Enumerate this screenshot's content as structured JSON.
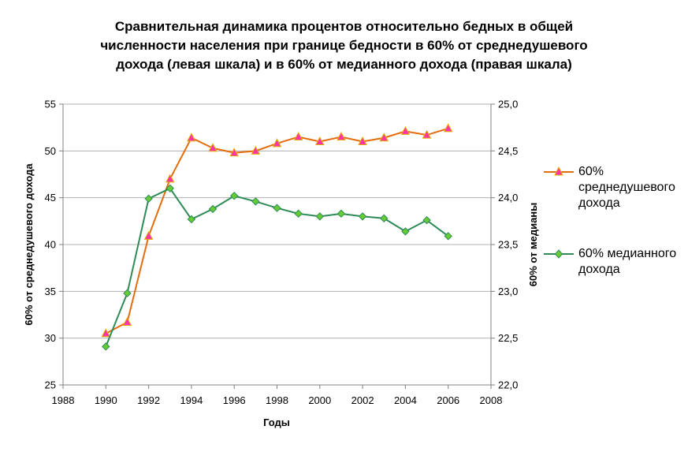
{
  "chart_data": {
    "type": "line",
    "title_lines": [
      "Сравнительная динамика процентов относительно бедных в общей",
      "численности населения при границе бедности в 60% от среднедушевого",
      "дохода (левая шкала) и в 60% от медианного дохода (правая шкала)"
    ],
    "xlabel": "Годы",
    "ylabel_left": "60% от среднедушевого дохода",
    "ylabel_right": "60% от медианы",
    "xlim": [
      1988,
      2008
    ],
    "x_ticks": [
      "1988",
      "1990",
      "1992",
      "1994",
      "1996",
      "1998",
      "2000",
      "2002",
      "2004",
      "2006",
      "2008"
    ],
    "ylim_left": [
      25,
      55
    ],
    "y_ticks_left": [
      "25",
      "30",
      "35",
      "40",
      "45",
      "50",
      "55"
    ],
    "ylim_right": [
      22.0,
      25.0
    ],
    "y_ticks_right": [
      "22,0",
      "22,5",
      "23,0",
      "23,5",
      "24,0",
      "24,5",
      "25,0"
    ],
    "grid": true,
    "legend_position": "right",
    "series": [
      {
        "name_lines": [
          "60%",
          "среднедушевого",
          "дохода"
        ],
        "axis": "left",
        "color": "#e46c0a",
        "marker": "triangle",
        "marker_fill": "#ff33aa",
        "marker_stroke": "#e0b000",
        "x": [
          1990,
          1991,
          1992,
          1993,
          1994,
          1995,
          1996,
          1997,
          1998,
          1999,
          2000,
          2001,
          2002,
          2003,
          2004,
          2005,
          2006
        ],
        "values": [
          30.5,
          31.7,
          40.9,
          47.0,
          51.4,
          50.3,
          49.8,
          50.0,
          50.8,
          51.5,
          51.0,
          51.5,
          51.0,
          51.4,
          52.1,
          51.7,
          52.4
        ]
      },
      {
        "name_lines": [
          "60% медианного",
          "дохода"
        ],
        "axis": "right",
        "color": "#2e8b57",
        "marker": "diamond",
        "marker_fill": "#66cc33",
        "marker_stroke": "#2e8b57",
        "x": [
          1990,
          1991,
          1992,
          1993,
          1994,
          1995,
          1996,
          1997,
          1998,
          1999,
          2000,
          2001,
          2002,
          2003,
          2004,
          2005,
          2006
        ],
        "values": [
          22.41,
          22.98,
          23.99,
          24.1,
          23.77,
          23.88,
          24.02,
          23.96,
          23.89,
          23.83,
          23.8,
          23.83,
          23.8,
          23.78,
          23.64,
          23.76,
          23.59
        ]
      }
    ]
  }
}
